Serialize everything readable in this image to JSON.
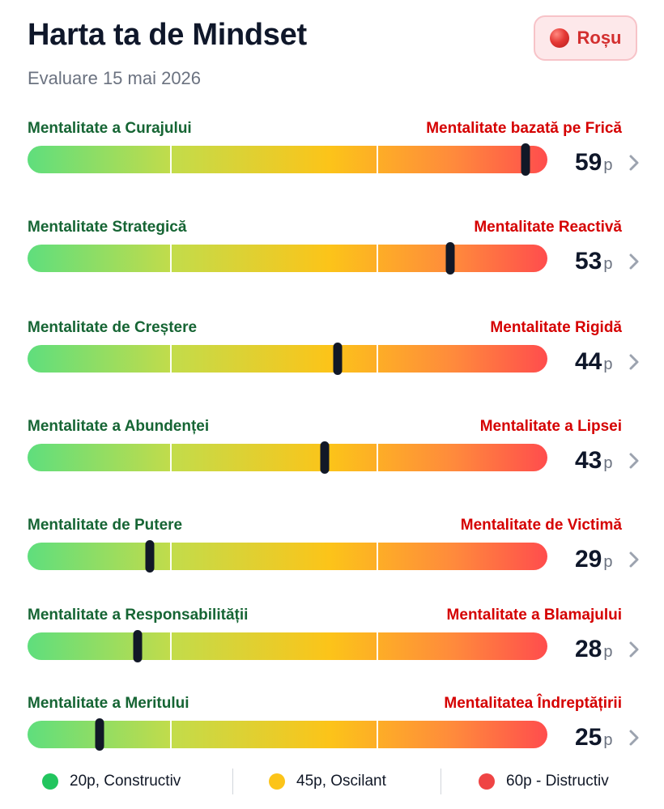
{
  "header": {
    "title": "Harta ta de Mindset",
    "subtitle": "Evaluare 15 mai 2026",
    "badge": {
      "label": "Roșu",
      "color": "#e53935"
    }
  },
  "scale": {
    "min": 20,
    "max": 60,
    "unit": "p"
  },
  "rows": [
    {
      "left": "Mentalitate a Curajului",
      "right": "Mentalitate bazată pe Frică",
      "score": "59",
      "value": 59
    },
    {
      "left": "Mentalitate Strategică",
      "right": "Mentalitate Reactivă",
      "score": "53",
      "value": 53
    },
    {
      "left": "Mentalitate de Creștere",
      "right": "Mentalitate Rigidă",
      "score": "44",
      "value": 44
    },
    {
      "left": "Mentalitate a Abundenței",
      "right": "Mentalitate a Lipsei",
      "score": "43",
      "value": 43
    },
    {
      "left": "Mentalitate de Putere",
      "right": "Mentalitate de Victimă",
      "score": "29",
      "value": 29
    },
    {
      "left": "Mentalitate a Responsabilității",
      "right": "Mentalitate a Blamajului",
      "score": "28",
      "value": 28
    },
    {
      "left": "Mentalitate a Meritului",
      "right": "Mentalitatea Îndreptățirii",
      "score": "25",
      "value": 25
    }
  ],
  "legend": [
    {
      "label": "20p, Constructiv",
      "color": "#22c55e"
    },
    {
      "label": "45p, Oscilant",
      "color": "#fcc419"
    },
    {
      "label": "60p - Distructiv",
      "color": "#ef4444"
    }
  ],
  "colors": {
    "constructive": "#166534",
    "destructive": "#d50000"
  },
  "icons": {
    "row_action": "chevron-right-icon",
    "badge_status": "red-circle-icon"
  }
}
